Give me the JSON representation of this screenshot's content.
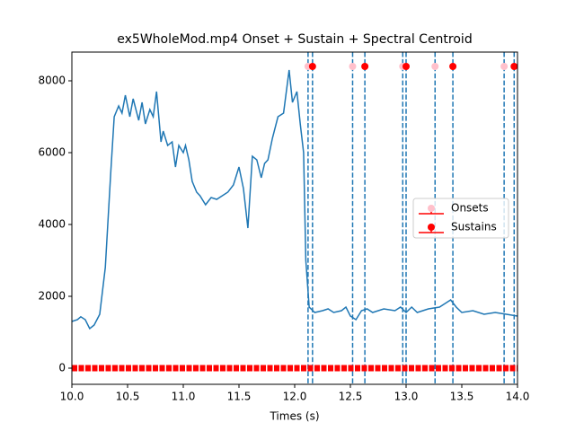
{
  "chart_data": {
    "type": "line",
    "title": "ex5WholeMod.mp4 Onset + Sustain + Spectral Centroid",
    "x_label": "Times (s)",
    "xlim": [
      10,
      14
    ],
    "ylim": [
      -450,
      8800
    ],
    "xticks": [
      {
        "value": 10,
        "label": "10.0"
      },
      {
        "value": 10.5,
        "label": "10.5"
      },
      {
        "value": 11,
        "label": "11.0"
      },
      {
        "value": 11.5,
        "label": "11.5"
      },
      {
        "value": 12,
        "label": "12.0"
      },
      {
        "value": 12.5,
        "label": "12.5"
      },
      {
        "value": 13,
        "label": "13.0"
      },
      {
        "value": 13.5,
        "label": "13.5"
      },
      {
        "value": 14,
        "label": "14.0"
      }
    ],
    "yticks": [
      0,
      2000,
      4000,
      6000,
      8000
    ],
    "legend_position": "center right",
    "centroid": {
      "color": "#1f77b4",
      "x": [
        10.0,
        10.05,
        10.08,
        10.12,
        10.16,
        10.2,
        10.25,
        10.3,
        10.35,
        10.38,
        10.42,
        10.45,
        10.48,
        10.52,
        10.55,
        10.6,
        10.63,
        10.66,
        10.7,
        10.73,
        10.76,
        10.8,
        10.82,
        10.86,
        10.9,
        10.93,
        10.96,
        11.0,
        11.02,
        11.05,
        11.08,
        11.12,
        11.15,
        11.2,
        11.25,
        11.3,
        11.35,
        11.4,
        11.45,
        11.5,
        11.54,
        11.58,
        11.62,
        11.66,
        11.7,
        11.73,
        11.76,
        11.8,
        11.85,
        11.9,
        11.95,
        11.98,
        12.02,
        12.05,
        12.08,
        12.1,
        12.13,
        12.18,
        12.25,
        12.3,
        12.35,
        12.42,
        12.46,
        12.5,
        12.55,
        12.6,
        12.65,
        12.7,
        12.8,
        12.9,
        12.95,
        13.0,
        13.05,
        13.1,
        13.15,
        13.2,
        13.3,
        13.35,
        13.4,
        13.45,
        13.5,
        13.6,
        13.7,
        13.8,
        13.9,
        14.0
      ],
      "values": [
        1300,
        1350,
        1430,
        1350,
        1100,
        1200,
        1500,
        2800,
        5500,
        7000,
        7300,
        7100,
        7600,
        7000,
        7500,
        6900,
        7400,
        6800,
        7200,
        7000,
        7700,
        6300,
        6600,
        6200,
        6300,
        5600,
        6200,
        6000,
        6200,
        5800,
        5200,
        4900,
        4800,
        4550,
        4750,
        4700,
        4800,
        4900,
        5100,
        5600,
        5000,
        3900,
        5900,
        5800,
        5300,
        5700,
        5800,
        6400,
        7000,
        7100,
        8300,
        7400,
        7700,
        6800,
        6000,
        3000,
        1700,
        1550,
        1600,
        1650,
        1550,
        1600,
        1700,
        1450,
        1350,
        1600,
        1650,
        1550,
        1650,
        1600,
        1700,
        1550,
        1700,
        1550,
        1600,
        1650,
        1700,
        1800,
        1900,
        1700,
        1550,
        1600,
        1500,
        1550,
        1500,
        1450
      ]
    },
    "series": [
      {
        "name": "Onsets",
        "color": "#ffc0cb",
        "x": [
          12.12,
          12.52,
          12.97,
          13.26,
          13.88
        ],
        "values": [
          8400,
          8400,
          8400,
          8400,
          8400
        ]
      },
      {
        "name": "Sustains",
        "color": "#ff0000",
        "x": [
          12.16,
          12.63,
          13.0,
          13.42,
          13.97
        ],
        "values": [
          8400,
          8400,
          8400,
          8400,
          8400
        ]
      }
    ]
  }
}
